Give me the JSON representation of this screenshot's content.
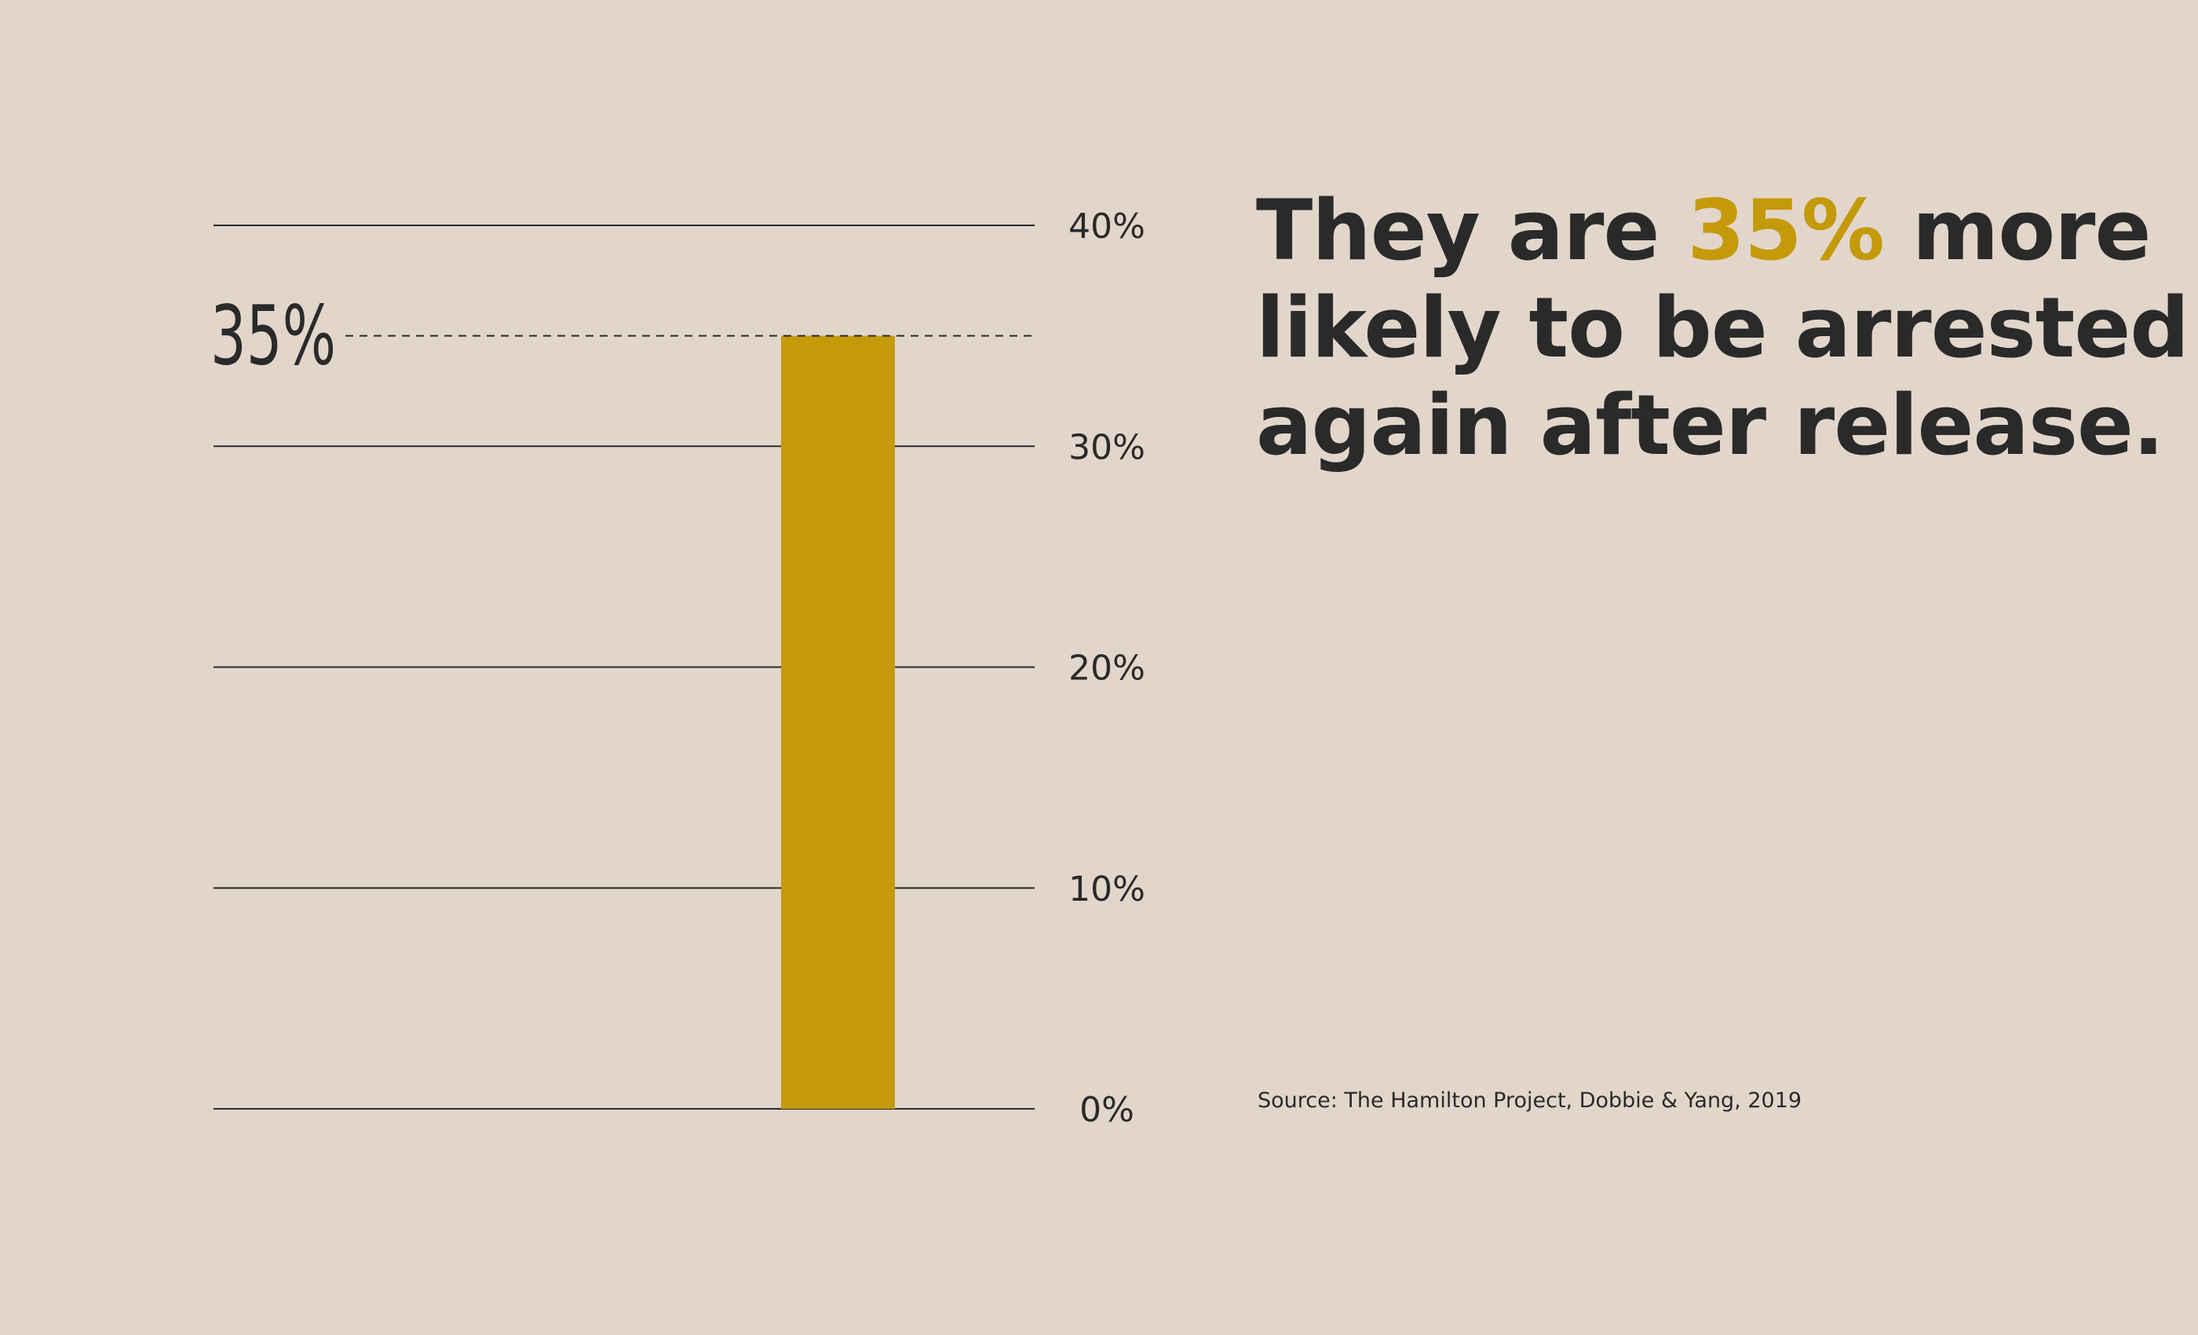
{
  "colors": {
    "background": "#e2d6cb",
    "bar": "#c49a0a",
    "ink": "#2a2a2a",
    "highlight": "#c49a0a"
  },
  "headline": {
    "line1_before": "They are ",
    "line1_highlight": "35%",
    "line1_after": " more",
    "line2": "likely to be arrested",
    "line3": "again after release."
  },
  "source": "Source: The Hamilton Project, Dobbie & Yang, 2019",
  "chart_data": {
    "type": "bar",
    "categories": [
      ""
    ],
    "values": [
      35
    ],
    "ylim": [
      0,
      40
    ],
    "ytick_values": [
      0,
      10,
      20,
      30,
      40
    ],
    "ytick_labels": [
      "0%",
      "10%",
      "20%",
      "30%",
      "40%"
    ],
    "grid": true,
    "annotations": [
      {
        "label": "35%",
        "value": 35,
        "style": "dashed"
      }
    ]
  }
}
